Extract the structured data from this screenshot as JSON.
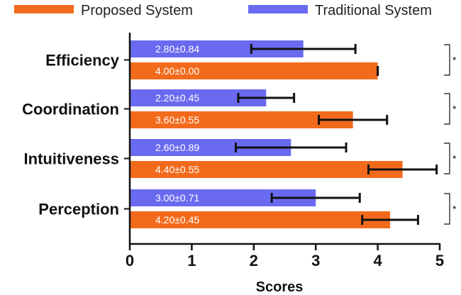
{
  "chart_data": {
    "type": "bar",
    "orientation": "horizontal",
    "categories": [
      "Efficiency",
      "Coordination",
      "Intuitiveness",
      "Perception"
    ],
    "series": [
      {
        "name": "Traditional System",
        "color": "#6a6af0",
        "values": [
          2.8,
          2.2,
          2.6,
          3.0
        ],
        "errors": [
          0.84,
          0.45,
          0.89,
          0.71
        ],
        "labels": [
          "2.80±0.84",
          "2.20±0.45",
          "2.60±0.89",
          "3.00±0.71"
        ]
      },
      {
        "name": "Proposed System",
        "color": "#f26b1d",
        "values": [
          4.0,
          3.6,
          4.4,
          4.2
        ],
        "errors": [
          0.0,
          0.55,
          0.55,
          0.45
        ],
        "labels": [
          "4.00±0.00",
          "3.60±0.55",
          "4.40±0.55",
          "4.20±0.45"
        ]
      }
    ],
    "significance": [
      "*",
      "*",
      "*",
      "*"
    ],
    "xlabel": "Scores",
    "ylabel": "",
    "xlim": [
      0,
      5
    ],
    "xticks": [
      "0",
      "1",
      "2",
      "3",
      "4",
      "5"
    ],
    "legend": {
      "placement": "top",
      "order": [
        "Proposed System",
        "Traditional System"
      ]
    },
    "grid": false
  }
}
